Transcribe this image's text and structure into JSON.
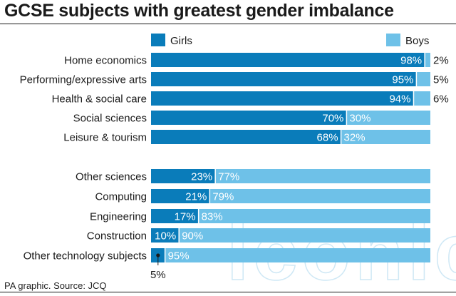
{
  "chart_data": {
    "type": "bar",
    "orientation": "horizontal",
    "stacked": true,
    "percent": true,
    "title": "GCSE subjects with greatest gender imbalance",
    "source": "PA graphic. Source: JCQ",
    "categories": [
      "Home economics",
      "Performing/expressive arts",
      "Health & social care",
      "Social sciences",
      "Leisure & tourism",
      "Other sciences",
      "Computing",
      "Engineering",
      "Construction",
      "Other technology subjects"
    ],
    "series": [
      {
        "name": "Girls",
        "color": "#0a7cba",
        "values": [
          98,
          95,
          94,
          70,
          68,
          23,
          21,
          17,
          10,
          5
        ]
      },
      {
        "name": "Boys",
        "color": "#6ec1e8",
        "values": [
          2,
          5,
          6,
          30,
          32,
          77,
          79,
          83,
          90,
          95
        ]
      }
    ],
    "value_labels": {
      "Girls": [
        "98%",
        "95%",
        "94%",
        "70%",
        "68%",
        "23%",
        "21%",
        "17%",
        "10%",
        "5%"
      ],
      "Boys": [
        "2%",
        "5%",
        "6%",
        "30%",
        "32%",
        "77%",
        "79%",
        "83%",
        "90%",
        "95%"
      ]
    },
    "xlim": [
      0,
      100
    ],
    "grid": false,
    "legend": "top",
    "watermark": "iconic"
  }
}
